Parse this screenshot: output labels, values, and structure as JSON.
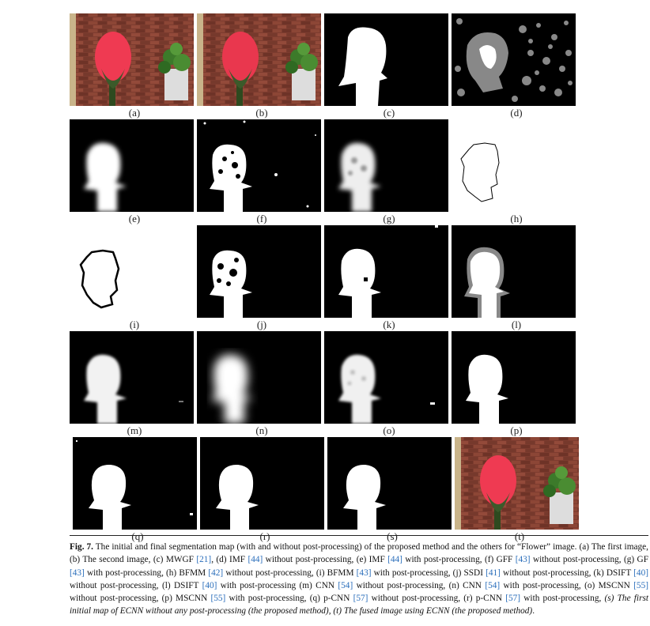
{
  "figure": {
    "labels": {
      "a": "(a)",
      "b": "(b)",
      "c": "(c)",
      "d": "(d)",
      "e": "(e)",
      "f": "(f)",
      "g": "(g)",
      "h": "(h)",
      "i": "(i)",
      "j": "(j)",
      "k": "(k)",
      "l": "(l)",
      "m": "(m)",
      "n": "(n)",
      "o": "(o)",
      "p": "(p)",
      "q": "(q)",
      "r": "(r)",
      "s": "(s)",
      "t": "(t)"
    }
  },
  "caption": {
    "fig": "Fig. 7.",
    "t1": " The initial and final segmentation map (with and without post-processing) of the proposed method and the others for “Flower” image. (a) The first image, (b) The second image, (c) MWGF ",
    "r21": "[21]",
    "t2": ", (d) IMF ",
    "r44a": "[44]",
    "t3": " without post-processing, (e) IMF ",
    "r44b": "[44]",
    "t4": " with post-processing, (f) GFF ",
    "r43a": "[43]",
    "t5": " without post-processing, (g) GF ",
    "r43b": "[43]",
    "t6": " with post-processing, (h) BFMM ",
    "r42": "[42]",
    "t7": " without post-processing, (i) BFMM ",
    "r43c": "[43]",
    "t8": " with post-processing, (j) SSDI ",
    "r41": "[41]",
    "t9": " without post-processing, (k) DSIFT ",
    "r40a": "[40]",
    "t10": " without post-processing, (l) DSIFT ",
    "r40b": "[40]",
    "t11": " with post-processing (m) CNN ",
    "r54a": "[54]",
    "t12": " without post-processing, (n) CNN ",
    "r54b": "[54]",
    "t13": " with post-processing, (o) MSCNN ",
    "r55a": "[55]",
    "t14": " without post-processing, (p) MSCNN ",
    "r55b": "[55]",
    "t15": " with post-processing, (q) p-CNN ",
    "r57a": "[57]",
    "t16": " without post-processing, (r) p-CNN ",
    "r57b": "[57]",
    "t17": " with post-processing, ",
    "it1": "(s) The first initial map of ECNN without any post-processing (the proposed method), (t) The fused image using ECNN (the proposed method)",
    "end": "."
  },
  "colors": {
    "ref": "#2a6ebb",
    "rose": "#e8334a",
    "brick": "#7a3a2e",
    "mask": "#ffffff",
    "bg": "#000000"
  }
}
